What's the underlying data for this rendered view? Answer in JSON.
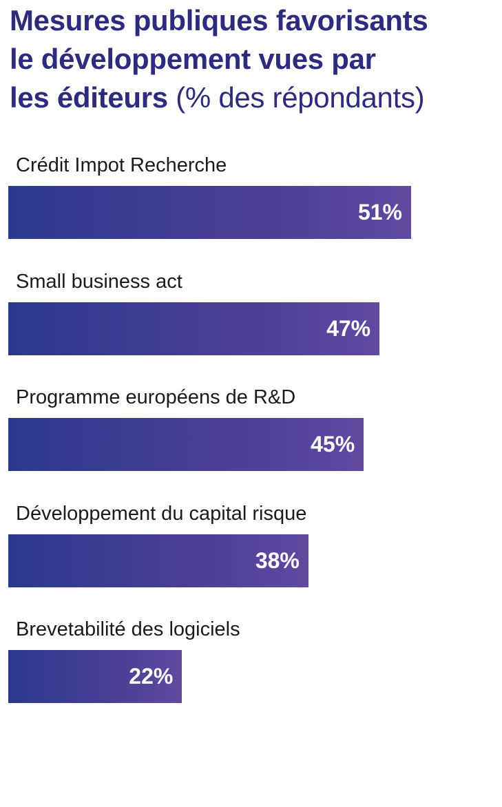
{
  "title": {
    "line1": "Mesures publiques favorisants",
    "line2": "le développement vues par",
    "line3_strong": "les éditeurs",
    "line3_light": "(% des répondants)"
  },
  "chart_data": {
    "type": "bar",
    "orientation": "horizontal",
    "title": "Mesures publiques favorisants le développement vues par les éditeurs (% des répondants)",
    "categories": [
      "Crédit Impot Recherche",
      "Small business act",
      "Programme européens de R&D",
      "Développement du capital risque",
      "Brevetabilité des logiciels"
    ],
    "values": [
      51,
      47,
      45,
      38,
      22
    ],
    "value_labels": [
      "51%",
      "47%",
      "45%",
      "38%",
      "22%"
    ],
    "unit": "%",
    "xlim": [
      0,
      63
    ],
    "grid": false,
    "colors": {
      "bar_start": "#2a3a8f",
      "bar_end": "#5f4aa0",
      "title": "#2e2a7e",
      "label": "#1b1b1b",
      "value_text": "#ffffff"
    }
  }
}
